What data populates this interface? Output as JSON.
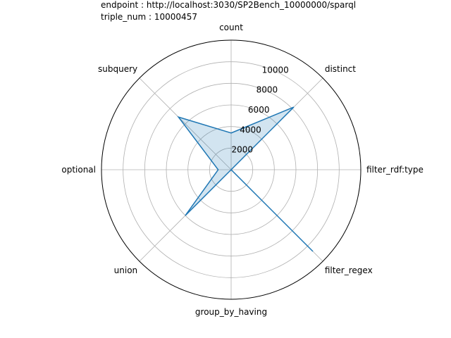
{
  "chart_data": {
    "type": "radar",
    "title_lines": [
      "endpoint : http://localhost:3030/SP2Bench_10000000/sparql",
      "triple_num : 10000457"
    ],
    "categories": [
      "count",
      "distinct",
      "filter_rdf:type",
      "filter_regex",
      "group_by_having",
      "union",
      "optional",
      "subquery"
    ],
    "values": [
      3400,
      8200,
      0,
      10700,
      0,
      6000,
      1200,
      6900
    ],
    "radial_ticks": [
      2000,
      4000,
      6000,
      8000,
      10000
    ],
    "radial_tick_labels": [
      "2000",
      "4000",
      "6000",
      "8000",
      "10000"
    ],
    "rlim": [
      0,
      12000
    ],
    "grid": true,
    "legend": "none",
    "colors": {
      "line": "#1f77b4",
      "fill": "#1f77b4",
      "grid": "#b0b0b0",
      "frame": "#000000"
    }
  }
}
